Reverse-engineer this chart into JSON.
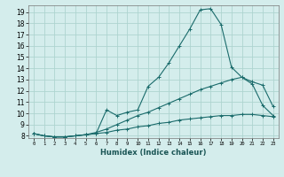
{
  "title": "",
  "xlabel": "Humidex (Indice chaleur)",
  "ylabel": "",
  "background_color": "#d4edec",
  "grid_color": "#aed4d0",
  "line_color": "#1a6b6b",
  "xlim": [
    -0.5,
    23.5
  ],
  "ylim": [
    7.8,
    19.6
  ],
  "yticks": [
    8,
    9,
    10,
    11,
    12,
    13,
    14,
    15,
    16,
    17,
    18,
    19
  ],
  "xticks": [
    0,
    1,
    2,
    3,
    4,
    5,
    6,
    7,
    8,
    9,
    10,
    11,
    12,
    13,
    14,
    15,
    16,
    17,
    18,
    19,
    20,
    21,
    22,
    23
  ],
  "series": [
    {
      "x": [
        0,
        1,
        2,
        3,
        4,
        5,
        6,
        7,
        8,
        9,
        10,
        11,
        12,
        13,
        14,
        15,
        16,
        17,
        18,
        19,
        20,
        21,
        22,
        23
      ],
      "y": [
        8.2,
        8.0,
        7.9,
        7.9,
        8.0,
        8.1,
        8.2,
        10.3,
        9.8,
        10.1,
        10.3,
        12.4,
        13.2,
        14.5,
        16.0,
        17.5,
        19.2,
        19.3,
        17.9,
        14.1,
        13.2,
        12.6,
        10.7,
        9.8
      ]
    },
    {
      "x": [
        0,
        1,
        2,
        3,
        4,
        5,
        6,
        7,
        8,
        9,
        10,
        11,
        12,
        13,
        14,
        15,
        16,
        17,
        18,
        19,
        20,
        21,
        22,
        23
      ],
      "y": [
        8.2,
        8.0,
        7.9,
        7.9,
        8.0,
        8.1,
        8.3,
        8.6,
        9.0,
        9.4,
        9.8,
        10.1,
        10.5,
        10.9,
        11.3,
        11.7,
        12.1,
        12.4,
        12.7,
        13.0,
        13.2,
        12.8,
        12.5,
        10.6
      ]
    },
    {
      "x": [
        0,
        1,
        2,
        3,
        4,
        5,
        6,
        7,
        8,
        9,
        10,
        11,
        12,
        13,
        14,
        15,
        16,
        17,
        18,
        19,
        20,
        21,
        22,
        23
      ],
      "y": [
        8.2,
        8.0,
        7.9,
        7.9,
        8.0,
        8.1,
        8.2,
        8.3,
        8.5,
        8.6,
        8.8,
        8.9,
        9.1,
        9.2,
        9.4,
        9.5,
        9.6,
        9.7,
        9.8,
        9.8,
        9.9,
        9.9,
        9.8,
        9.7
      ]
    }
  ]
}
